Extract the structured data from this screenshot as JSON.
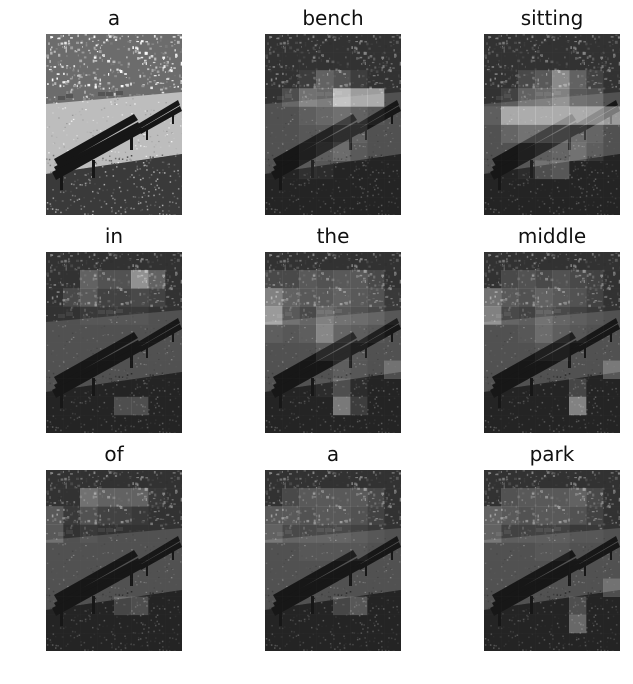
{
  "figure": {
    "panels": [
      {
        "word": "a",
        "attention": null
      },
      {
        "word": "bench",
        "attention": [
          [
            0.05,
            0.05,
            0.05,
            0.05,
            0.05,
            0.05,
            0.05,
            0.05
          ],
          [
            0.05,
            0.05,
            0.05,
            0.05,
            0.05,
            0.05,
            0.05,
            0.05
          ],
          [
            0.05,
            0.05,
            0.12,
            0.35,
            0.25,
            0.12,
            0.05,
            0.05
          ],
          [
            0.05,
            0.22,
            0.45,
            0.38,
            0.9,
            0.72,
            0.72,
            0.05
          ],
          [
            0.05,
            0.05,
            0.15,
            0.22,
            0.28,
            0.18,
            0.1,
            0.05
          ],
          [
            0.05,
            0.05,
            0.1,
            0.12,
            0.18,
            0.18,
            0.05,
            0.05
          ],
          [
            0.05,
            0.05,
            0.1,
            0.15,
            0.25,
            0.12,
            0.05,
            0.05
          ],
          [
            0.05,
            0.05,
            0.12,
            0.1,
            0.05,
            0.05,
            0.05,
            0.05
          ],
          [
            0.05,
            0.05,
            0.05,
            0.05,
            0.05,
            0.05,
            0.05,
            0.05
          ],
          [
            0.05,
            0.05,
            0.05,
            0.05,
            0.05,
            0.05,
            0.05,
            0.05
          ]
        ]
      },
      {
        "word": "sitting",
        "attention": [
          [
            0.05,
            0.05,
            0.05,
            0.05,
            0.05,
            0.05,
            0.05,
            0.05
          ],
          [
            0.05,
            0.05,
            0.05,
            0.05,
            0.05,
            0.05,
            0.05,
            0.05
          ],
          [
            0.05,
            0.05,
            0.2,
            0.3,
            0.6,
            0.35,
            0.15,
            0.05
          ],
          [
            0.05,
            0.15,
            0.35,
            0.4,
            0.55,
            0.3,
            0.25,
            0.05
          ],
          [
            0.15,
            0.7,
            0.72,
            0.72,
            0.72,
            0.72,
            0.7,
            0.6
          ],
          [
            0.05,
            0.2,
            0.3,
            0.3,
            0.3,
            0.25,
            0.2,
            0.05
          ],
          [
            0.05,
            0.05,
            0.1,
            0.15,
            0.2,
            0.3,
            0.15,
            0.05
          ],
          [
            0.05,
            0.05,
            0.1,
            0.3,
            0.35,
            0.05,
            0.05,
            0.05
          ],
          [
            0.05,
            0.05,
            0.05,
            0.05,
            0.05,
            0.05,
            0.05,
            0.05
          ],
          [
            0.05,
            0.05,
            0.05,
            0.05,
            0.05,
            0.05,
            0.05,
            0.05
          ]
        ]
      },
      {
        "word": "in",
        "attention": [
          [
            0.05,
            0.05,
            0.05,
            0.05,
            0.05,
            0.05,
            0.05,
            0.05
          ],
          [
            0.05,
            0.05,
            0.35,
            0.25,
            0.25,
            0.65,
            0.35,
            0.05
          ],
          [
            0.05,
            0.2,
            0.3,
            0.15,
            0.15,
            0.2,
            0.15,
            0.05
          ],
          [
            0.05,
            0.05,
            0.1,
            0.1,
            0.1,
            0.1,
            0.05,
            0.05
          ],
          [
            0.05,
            0.05,
            0.05,
            0.05,
            0.05,
            0.05,
            0.05,
            0.05
          ],
          [
            0.05,
            0.05,
            0.05,
            0.05,
            0.05,
            0.05,
            0.05,
            0.05
          ],
          [
            0.05,
            0.05,
            0.05,
            0.05,
            0.05,
            0.05,
            0.05,
            0.05
          ],
          [
            0.05,
            0.05,
            0.05,
            0.05,
            0.05,
            0.05,
            0.05,
            0.05
          ],
          [
            0.05,
            0.05,
            0.05,
            0.05,
            0.3,
            0.3,
            0.05,
            0.05
          ],
          [
            0.05,
            0.05,
            0.05,
            0.05,
            0.05,
            0.05,
            0.05,
            0.05
          ]
        ]
      },
      {
        "word": "the",
        "attention": [
          [
            0.05,
            0.05,
            0.05,
            0.05,
            0.05,
            0.05,
            0.05,
            0.05
          ],
          [
            0.2,
            0.2,
            0.3,
            0.25,
            0.3,
            0.3,
            0.2,
            0.05
          ],
          [
            0.55,
            0.35,
            0.3,
            0.3,
            0.35,
            0.3,
            0.25,
            0.1
          ],
          [
            0.7,
            0.3,
            0.2,
            0.4,
            0.3,
            0.25,
            0.2,
            0.1
          ],
          [
            0.15,
            0.1,
            0.15,
            0.45,
            0.2,
            0.15,
            0.1,
            0.05
          ],
          [
            0.05,
            0.05,
            0.05,
            0.15,
            0.15,
            0.1,
            0.05,
            0.05
          ],
          [
            0.05,
            0.05,
            0.05,
            0.05,
            0.15,
            0.1,
            0.05,
            0.3
          ],
          [
            0.05,
            0.05,
            0.05,
            0.1,
            0.3,
            0.1,
            0.05,
            0.05
          ],
          [
            0.05,
            0.05,
            0.05,
            0.05,
            0.55,
            0.2,
            0.05,
            0.05
          ],
          [
            0.05,
            0.05,
            0.05,
            0.05,
            0.05,
            0.05,
            0.05,
            0.05
          ]
        ]
      },
      {
        "word": "middle",
        "attention": [
          [
            0.05,
            0.05,
            0.05,
            0.05,
            0.05,
            0.05,
            0.05,
            0.05
          ],
          [
            0.05,
            0.2,
            0.25,
            0.2,
            0.25,
            0.2,
            0.15,
            0.05
          ],
          [
            0.45,
            0.3,
            0.25,
            0.35,
            0.3,
            0.25,
            0.15,
            0.05
          ],
          [
            0.55,
            0.2,
            0.15,
            0.3,
            0.2,
            0.15,
            0.1,
            0.05
          ],
          [
            0.05,
            0.05,
            0.1,
            0.25,
            0.15,
            0.1,
            0.05,
            0.05
          ],
          [
            0.05,
            0.05,
            0.05,
            0.1,
            0.1,
            0.05,
            0.05,
            0.05
          ],
          [
            0.05,
            0.05,
            0.05,
            0.05,
            0.05,
            0.05,
            0.05,
            0.35
          ],
          [
            0.05,
            0.05,
            0.05,
            0.05,
            0.05,
            0.25,
            0.05,
            0.05
          ],
          [
            0.05,
            0.05,
            0.05,
            0.05,
            0.05,
            0.6,
            0.05,
            0.05
          ],
          [
            0.05,
            0.05,
            0.05,
            0.05,
            0.05,
            0.05,
            0.05,
            0.05
          ]
        ]
      },
      {
        "word": "of",
        "attention": [
          [
            0.05,
            0.05,
            0.05,
            0.05,
            0.05,
            0.05,
            0.05,
            0.05
          ],
          [
            0.05,
            0.05,
            0.45,
            0.35,
            0.35,
            0.35,
            0.1,
            0.05
          ],
          [
            0.3,
            0.1,
            0.25,
            0.15,
            0.15,
            0.1,
            0.05,
            0.05
          ],
          [
            0.3,
            0.05,
            0.1,
            0.05,
            0.05,
            0.05,
            0.05,
            0.05
          ],
          [
            0.05,
            0.05,
            0.05,
            0.05,
            0.05,
            0.05,
            0.05,
            0.05
          ],
          [
            0.05,
            0.05,
            0.05,
            0.05,
            0.05,
            0.05,
            0.05,
            0.05
          ],
          [
            0.05,
            0.05,
            0.05,
            0.05,
            0.05,
            0.05,
            0.05,
            0.05
          ],
          [
            0.05,
            0.05,
            0.05,
            0.05,
            0.25,
            0.3,
            0.05,
            0.05
          ],
          [
            0.05,
            0.05,
            0.05,
            0.05,
            0.05,
            0.05,
            0.05,
            0.05
          ],
          [
            0.05,
            0.05,
            0.05,
            0.05,
            0.05,
            0.05,
            0.05,
            0.05
          ]
        ]
      },
      {
        "word": "a",
        "attention": [
          [
            0.05,
            0.05,
            0.05,
            0.05,
            0.05,
            0.05,
            0.05,
            0.05
          ],
          [
            0.05,
            0.2,
            0.3,
            0.3,
            0.3,
            0.3,
            0.2,
            0.05
          ],
          [
            0.3,
            0.3,
            0.25,
            0.3,
            0.3,
            0.25,
            0.15,
            0.05
          ],
          [
            0.35,
            0.2,
            0.2,
            0.2,
            0.2,
            0.15,
            0.1,
            0.05
          ],
          [
            0.05,
            0.05,
            0.1,
            0.1,
            0.1,
            0.1,
            0.05,
            0.05
          ],
          [
            0.05,
            0.05,
            0.05,
            0.05,
            0.05,
            0.05,
            0.05,
            0.05
          ],
          [
            0.05,
            0.05,
            0.05,
            0.05,
            0.05,
            0.05,
            0.05,
            0.05
          ],
          [
            0.05,
            0.05,
            0.05,
            0.05,
            0.25,
            0.35,
            0.05,
            0.05
          ],
          [
            0.05,
            0.05,
            0.05,
            0.05,
            0.05,
            0.05,
            0.05,
            0.05
          ],
          [
            0.05,
            0.05,
            0.05,
            0.05,
            0.05,
            0.05,
            0.05,
            0.05
          ]
        ]
      },
      {
        "word": "park",
        "attention": [
          [
            0.05,
            0.05,
            0.05,
            0.05,
            0.05,
            0.05,
            0.05,
            0.05
          ],
          [
            0.05,
            0.25,
            0.3,
            0.3,
            0.3,
            0.35,
            0.2,
            0.05
          ],
          [
            0.35,
            0.3,
            0.25,
            0.3,
            0.3,
            0.25,
            0.15,
            0.05
          ],
          [
            0.35,
            0.15,
            0.15,
            0.15,
            0.15,
            0.1,
            0.1,
            0.05
          ],
          [
            0.05,
            0.05,
            0.05,
            0.1,
            0.1,
            0.05,
            0.05,
            0.05
          ],
          [
            0.05,
            0.05,
            0.05,
            0.05,
            0.05,
            0.05,
            0.05,
            0.05
          ],
          [
            0.05,
            0.05,
            0.05,
            0.05,
            0.05,
            0.05,
            0.05,
            0.3
          ],
          [
            0.05,
            0.05,
            0.05,
            0.05,
            0.05,
            0.3,
            0.05,
            0.05
          ],
          [
            0.05,
            0.05,
            0.05,
            0.05,
            0.05,
            0.45,
            0.05,
            0.05
          ],
          [
            0.05,
            0.05,
            0.05,
            0.05,
            0.05,
            0.05,
            0.05,
            0.05
          ]
        ]
      }
    ]
  }
}
